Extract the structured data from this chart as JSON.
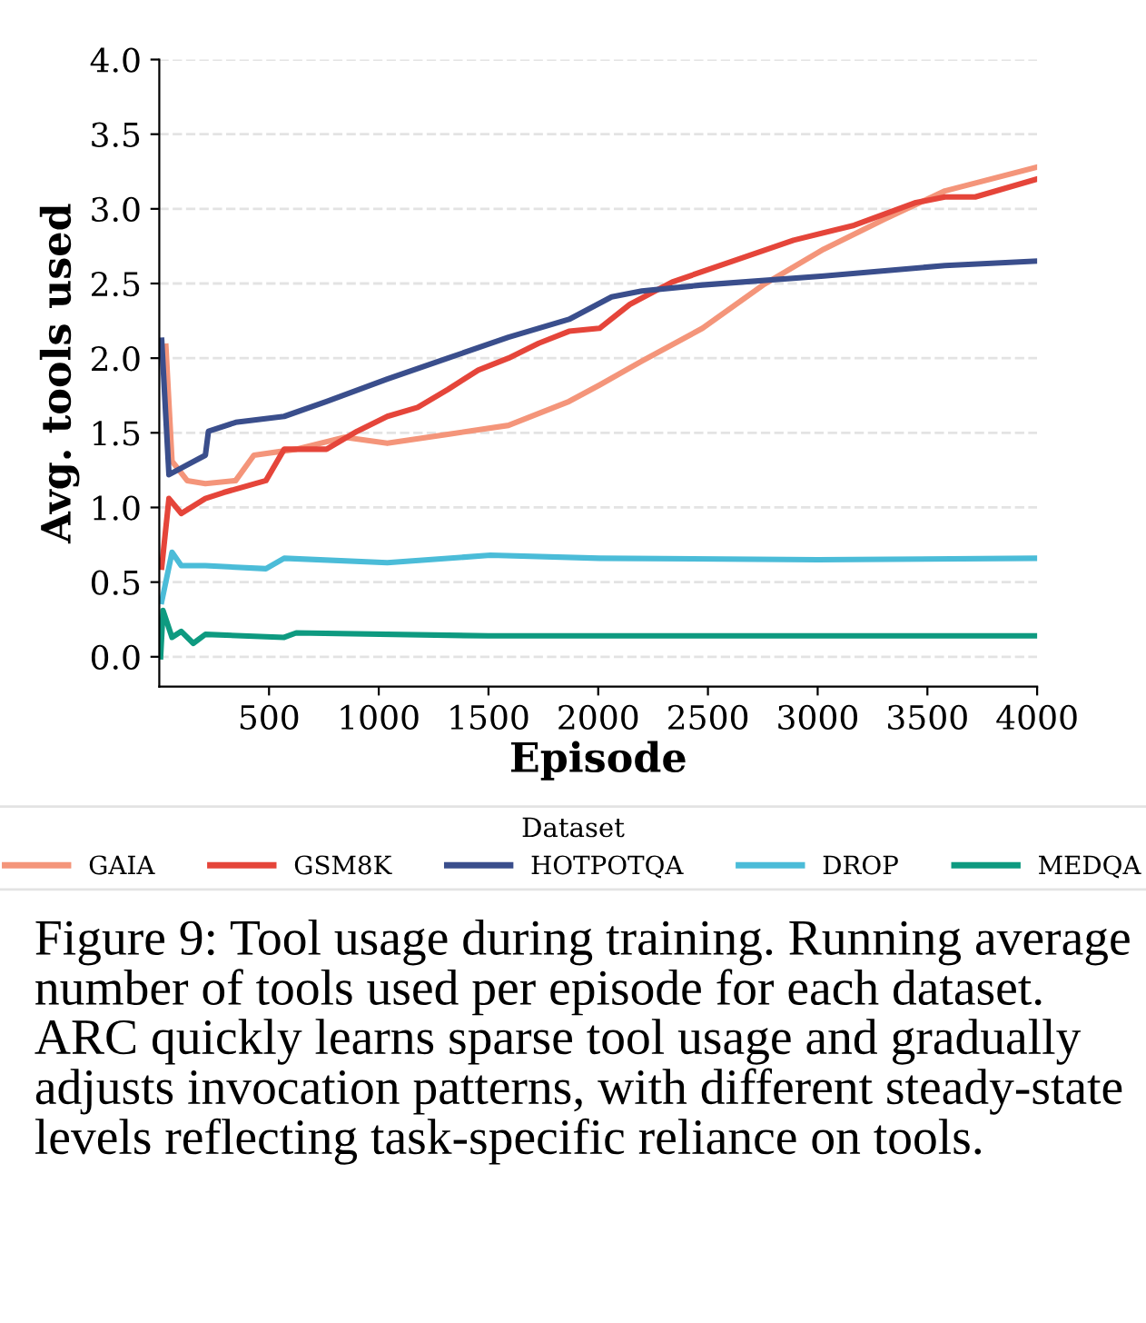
{
  "chart_data": {
    "type": "line",
    "xlabel": "Episode",
    "ylabel": "Avg. tools used",
    "legend_title": "Dataset",
    "legend": "bottom",
    "grid": "y",
    "marker": "none",
    "line_style": "solid",
    "xlim": [
      0,
      4000
    ],
    "xticks": [
      500,
      1000,
      1500,
      2000,
      2500,
      3000,
      3500,
      4000
    ],
    "ylim": [
      -0.2,
      4.0
    ],
    "yticks": [
      {
        "value": 0,
        "label": "0.0"
      },
      0.5,
      {
        "value": 1,
        "label": "1.0"
      },
      1.5,
      {
        "value": 2,
        "label": "2.0"
      },
      2.5,
      {
        "value": 3,
        "label": "3.0"
      },
      3.5,
      {
        "value": 4,
        "label": "4.0"
      }
    ],
    "series": [
      {
        "name": "GAIA",
        "color": "#f4957a",
        "x": [
          30,
          58,
          127,
          210,
          348,
          431,
          624,
          845,
          1039,
          1315,
          1591,
          1867,
          2006,
          2199,
          2475,
          2751,
          3028,
          3304,
          3580,
          4000
        ],
        "values": [
          2.08,
          1.31,
          1.18,
          1.16,
          1.18,
          1.35,
          1.39,
          1.47,
          1.43,
          1.49,
          1.55,
          1.71,
          1.82,
          1.98,
          2.2,
          2.49,
          2.73,
          2.93,
          3.12,
          3.28
        ]
      },
      {
        "name": "GSM8K",
        "color": "#e5453a",
        "x": [
          11,
          44,
          100,
          210,
          293,
          486,
          569,
          762,
          901,
          1039,
          1177,
          1315,
          1453,
          1591,
          1729,
          1867,
          2006,
          2144,
          2337,
          2613,
          2890,
          3166,
          3442,
          3580,
          3718,
          4000
        ],
        "values": [
          0.6,
          1.06,
          0.96,
          1.06,
          1.1,
          1.18,
          1.39,
          1.39,
          1.51,
          1.61,
          1.67,
          1.79,
          1.92,
          2.0,
          2.1,
          2.18,
          2.2,
          2.36,
          2.51,
          2.65,
          2.79,
          2.89,
          3.04,
          3.08,
          3.08,
          3.2
        ]
      },
      {
        "name": "HOTPOTQA",
        "color": "#3a4e8c",
        "x": [
          11,
          44,
          210,
          224,
          348,
          569,
          762,
          1039,
          1315,
          1591,
          1867,
          2061,
          2199,
          2475,
          3028,
          3580,
          4000
        ],
        "values": [
          2.12,
          1.22,
          1.35,
          1.51,
          1.57,
          1.61,
          1.71,
          1.86,
          2.0,
          2.14,
          2.26,
          2.41,
          2.45,
          2.49,
          2.55,
          2.62,
          2.65
        ]
      },
      {
        "name": "DROP",
        "color": "#4bbcd8",
        "x": [
          11,
          58,
          100,
          210,
          486,
          569,
          1039,
          1509,
          2006,
          3000,
          4000
        ],
        "values": [
          0.37,
          0.7,
          0.61,
          0.61,
          0.59,
          0.66,
          0.63,
          0.68,
          0.66,
          0.65,
          0.66
        ]
      },
      {
        "name": "MEDQA",
        "color": "#0e9a80",
        "x": [
          6,
          17,
          58,
          100,
          155,
          210,
          569,
          624,
          1500,
          2500,
          4000
        ],
        "values": [
          0.0,
          0.31,
          0.13,
          0.17,
          0.09,
          0.15,
          0.13,
          0.16,
          0.14,
          0.14,
          0.14
        ]
      }
    ],
    "annotations": [
      "Figure 9: Tool usage during training. Running average number of tools used per episode for each dataset. ARC quickly learns sparse tool usage and gradually adjusts invocation patterns, with different steady-state levels reflecting task-specific reliance on tools."
    ]
  }
}
